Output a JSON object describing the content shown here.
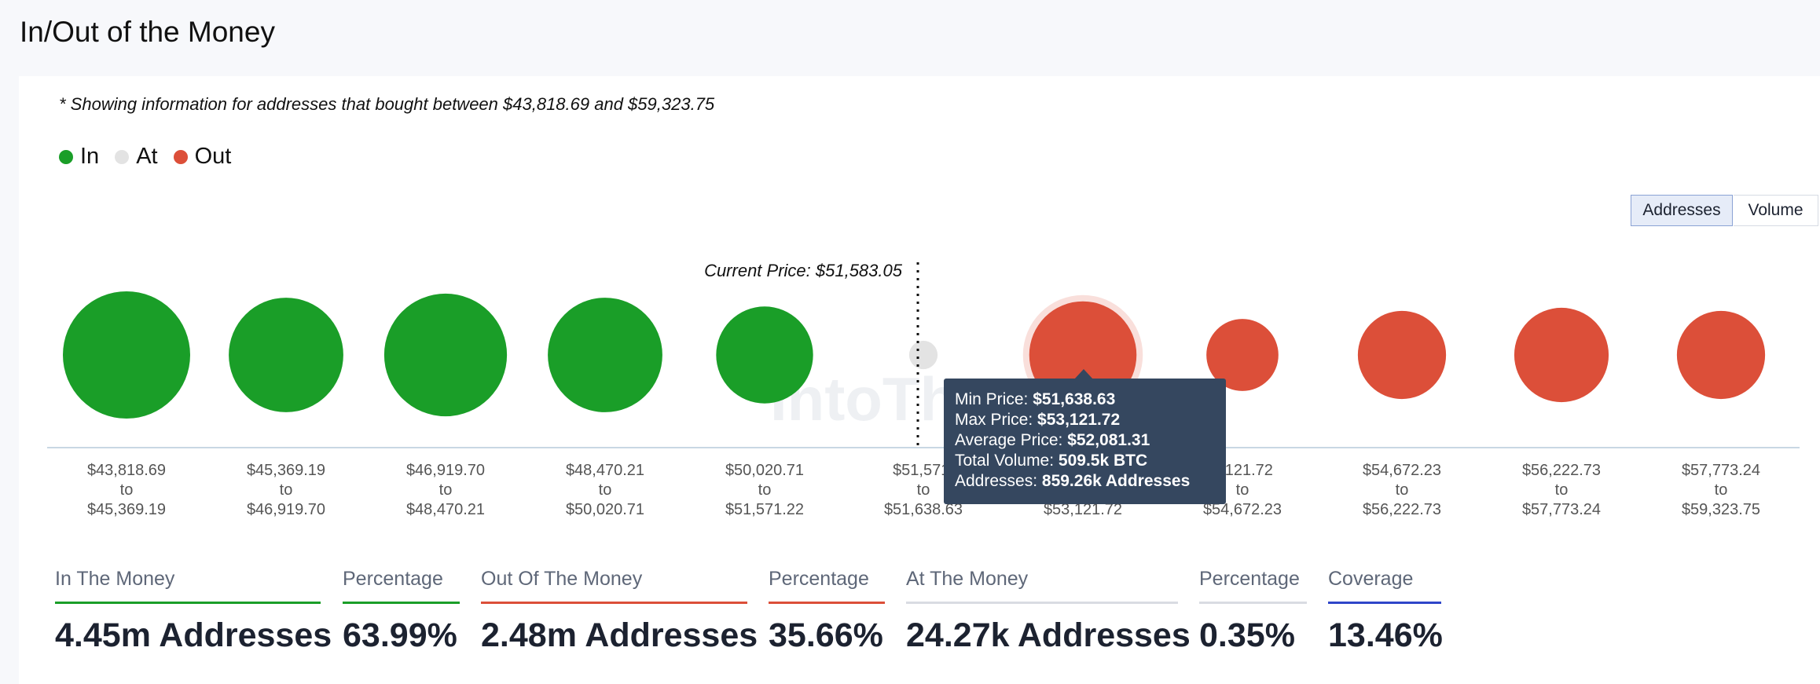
{
  "title": "In/Out of the Money",
  "note": "* Showing information for addresses that bought between $43,818.69 and $59,323.75",
  "legend": [
    {
      "label": "In",
      "color": "#1a9e28"
    },
    {
      "label": "At",
      "color": "#e3e3e3"
    },
    {
      "label": "Out",
      "color": "#dc4f39"
    }
  ],
  "toggles": {
    "addresses": "Addresses",
    "volume": "Volume",
    "active": "Addresses"
  },
  "current_price_label": "Current Price: $51,583.05",
  "watermark": "IntoThe",
  "tooltip": {
    "min_label": "Min Price: ",
    "min_value": "$51,638.63",
    "max_label": "Max Price: ",
    "max_value": "$53,121.72",
    "avg_label": "Average Price: ",
    "avg_value": "$52,081.31",
    "vol_label": "Total Volume: ",
    "vol_value": "509.5k BTC",
    "addr_label": "Addresses: ",
    "addr_value": "859.26k Addresses"
  },
  "stats": {
    "in_label": "In The Money",
    "in_value": "4.45m Addresses",
    "in_pct_label": "Percentage",
    "in_pct_value": "63.99%",
    "out_label": "Out Of The Money",
    "out_value": "2.48m Addresses",
    "out_pct_label": "Percentage",
    "out_pct_value": "35.66%",
    "at_label": "At The Money",
    "at_value": "24.27k Addresses",
    "at_pct_label": "Percentage",
    "at_pct_value": "0.35%",
    "cov_label": "Coverage",
    "cov_value": "13.46%"
  },
  "colors": {
    "in": "#1a9e28",
    "at": "#e3e3e3",
    "out": "#dc4f39",
    "coverage": "#2f45c9",
    "underline_at": "#d9dce2"
  },
  "chart_data": {
    "type": "bubble",
    "title": "",
    "current_price": 51583.05,
    "series_size_metric": "Addresses",
    "buckets": [
      {
        "from": "$43,818.69",
        "to": "$45,369.19",
        "status": "in",
        "size": 1.0,
        "label_visible": true
      },
      {
        "from": "$45,369.19",
        "to": "$46,919.70",
        "status": "in",
        "size": 0.81,
        "label_visible": true
      },
      {
        "from": "$46,919.70",
        "to": "$48,470.21",
        "status": "in",
        "size": 0.93,
        "label_visible": true
      },
      {
        "from": "$48,470.21",
        "to": "$50,020.71",
        "status": "in",
        "size": 0.81,
        "label_visible": true
      },
      {
        "from": "$50,020.71",
        "to": "$51,571.22",
        "status": "in",
        "size": 0.58,
        "label_visible": true
      },
      {
        "from": "$51,571.22",
        "to": "$51,638.63",
        "status": "at",
        "size": 0.05,
        "label_visible": true,
        "from_display": "$51,571.",
        "to_display": "$51,638.63"
      },
      {
        "from": "$51,638.63",
        "to": "$53,121.72",
        "status": "out",
        "size": 0.71,
        "label_visible": false,
        "highlighted": true,
        "to_display": "$53,121.72"
      },
      {
        "from": "$53,121.72",
        "to": "$54,672.23",
        "status": "out",
        "size": 0.32,
        "label_visible": true,
        "from_display": "3,121.72",
        "to_display": "$54,672.23"
      },
      {
        "from": "$54,672.23",
        "to": "$56,222.73",
        "status": "out",
        "size": 0.48,
        "label_visible": true
      },
      {
        "from": "$56,222.73",
        "to": "$57,773.24",
        "status": "out",
        "size": 0.55,
        "label_visible": true
      },
      {
        "from": "$57,773.24",
        "to": "$59,323.75",
        "status": "out",
        "size": 0.48,
        "label_visible": true
      }
    ],
    "to_word": "to"
  }
}
